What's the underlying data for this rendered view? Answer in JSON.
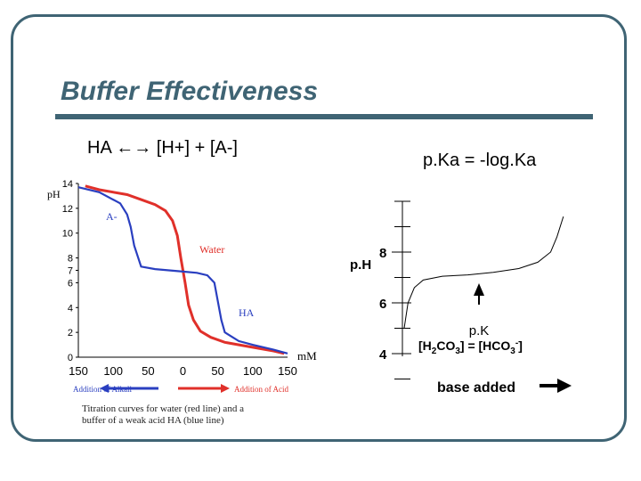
{
  "slide": {
    "title": "Buffer Effectiveness",
    "equation": "HA ←→ [H+] + [A-]",
    "pka_equation": "p.Ka = -log.Ka"
  },
  "colors": {
    "frame": "#3f6474",
    "water_curve": "#e0302a",
    "ha_curve": "#2a3fc0"
  },
  "left_chart": {
    "ylabel": "pH",
    "yticks": [
      "14",
      "12",
      "10",
      "8",
      "7",
      "6",
      "4",
      "2",
      "0"
    ],
    "xticks": [
      "150",
      "100",
      "50",
      "0",
      "50",
      "100",
      "150"
    ],
    "xunit": "mM",
    "labels": {
      "a_minus": "A-",
      "water": "Water",
      "ha": "HA"
    },
    "legend_left": "Addition of Alkali",
    "legend_right": "Addition of Acid",
    "caption_line1": "Titration curves for water (red line) and a",
    "caption_line2": "buffer of a weak acid HA (blue line)"
  },
  "right_chart": {
    "ylabel": "p.H",
    "yticks": [
      "8",
      "6",
      "4"
    ],
    "pk_label": "p.K",
    "pk_eq_parts": [
      "[H",
      "2",
      "CO",
      "3",
      "] = [HCO",
      "3",
      "-",
      "]"
    ],
    "xlabel": "base added"
  },
  "chart_data": [
    {
      "type": "line",
      "title": "",
      "xlabel": "mM",
      "ylabel": "pH",
      "xlim": [
        -150,
        150
      ],
      "ylim": [
        0,
        14
      ],
      "series": [
        {
          "name": "Water",
          "x": [
            -140,
            -120,
            -80,
            -60,
            -40,
            -25,
            -15,
            -8,
            -3,
            0,
            3,
            8,
            15,
            25,
            40,
            60,
            100,
            130,
            145
          ],
          "y": [
            13.8,
            13.5,
            13.1,
            12.7,
            12.3,
            11.8,
            11.0,
            9.8,
            8.0,
            7.0,
            6.0,
            4.2,
            3.0,
            2.1,
            1.6,
            1.2,
            0.8,
            0.5,
            0.3
          ]
        },
        {
          "name": "HA",
          "x": [
            -150,
            -120,
            -90,
            -80,
            -75,
            -70,
            -60,
            -40,
            -20,
            0,
            20,
            35,
            45,
            50,
            55,
            60,
            80,
            100,
            130,
            150
          ],
          "y": [
            13.7,
            13.3,
            12.4,
            11.5,
            10.5,
            9.0,
            7.3,
            7.1,
            7.0,
            6.9,
            6.8,
            6.6,
            6.0,
            4.5,
            3.0,
            2.0,
            1.3,
            1.0,
            0.6,
            0.3
          ]
        }
      ]
    },
    {
      "type": "line",
      "title": "",
      "xlabel": "base added",
      "ylabel": "p.H",
      "y_ticks": [
        4,
        6,
        8
      ],
      "series": [
        {
          "name": "",
          "x": [
            0,
            0.3,
            0.8,
            1.5,
            3,
            5,
            7,
            9,
            10.5,
            11.5,
            12,
            12.5
          ],
          "y": [
            5.0,
            6.0,
            6.6,
            6.9,
            7.05,
            7.1,
            7.2,
            7.35,
            7.6,
            8.0,
            8.6,
            9.4
          ]
        }
      ]
    }
  ]
}
